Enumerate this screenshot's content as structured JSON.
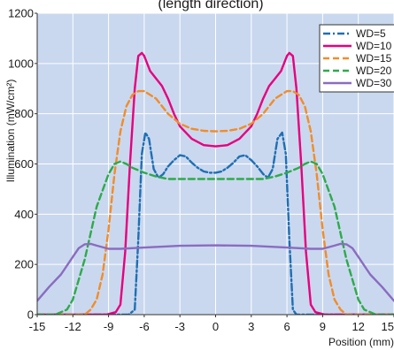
{
  "chart_data": {
    "type": "line",
    "title": "(length direction)",
    "xlabel": "Position (mm)",
    "ylabel": "Illumination (mW/cm²)",
    "xlim": [
      -15,
      15
    ],
    "ylim": [
      0,
      1200
    ],
    "x_ticks": [
      -15,
      -12,
      -9,
      -6,
      -3,
      0,
      3,
      6,
      9,
      12,
      15
    ],
    "y_ticks": [
      0,
      200,
      400,
      600,
      800,
      1000,
      1200
    ],
    "grid": true,
    "background": "#c9d8ef",
    "grid_color": "#ffffff",
    "legend_position": "top-right",
    "series": [
      {
        "name": "WD=5",
        "color": "#1f6fb2",
        "dash": "dash-dot",
        "x": [
          -15,
          -9,
          -7.3,
          -6.8,
          -6.5,
          -6.2,
          -5.9,
          -5.6,
          -5.2,
          -4.8,
          -4.4,
          -4.0,
          -3.5,
          -3.0,
          -2.5,
          -2.0,
          -1.5,
          -1.0,
          -0.5,
          0,
          0.5,
          1.0,
          1.5,
          2.0,
          2.5,
          3.0,
          3.5,
          4.0,
          4.4,
          4.8,
          5.2,
          5.6,
          5.9,
          6.2,
          6.5,
          6.8,
          7.3,
          9,
          15
        ],
        "y": [
          0,
          0,
          0,
          20,
          300,
          640,
          725,
          700,
          580,
          545,
          560,
          590,
          615,
          635,
          630,
          605,
          585,
          570,
          565,
          565,
          570,
          585,
          605,
          630,
          635,
          615,
          590,
          560,
          545,
          580,
          700,
          725,
          640,
          300,
          20,
          0,
          0,
          0,
          0
        ]
      },
      {
        "name": "WD=10",
        "color": "#e6007e",
        "dash": "solid",
        "x": [
          -15,
          -9.2,
          -8.4,
          -8.0,
          -7.6,
          -7.2,
          -6.8,
          -6.5,
          -6.2,
          -6.0,
          -5.5,
          -5.0,
          -4.5,
          -4.0,
          -3.5,
          -3.0,
          -2.0,
          -1.0,
          0,
          1.0,
          2.0,
          3.0,
          3.5,
          4.0,
          4.5,
          5.0,
          5.5,
          6.0,
          6.2,
          6.5,
          6.8,
          7.2,
          7.6,
          8.0,
          8.4,
          9.2,
          15
        ],
        "y": [
          0,
          0,
          10,
          40,
          250,
          600,
          900,
          1030,
          1042,
          1030,
          970,
          940,
          910,
          860,
          800,
          750,
          700,
          675,
          670,
          675,
          700,
          750,
          800,
          860,
          910,
          940,
          970,
          1030,
          1042,
          1030,
          900,
          600,
          250,
          40,
          10,
          0,
          0
        ]
      },
      {
        "name": "WD=15",
        "color": "#f28c28",
        "dash": "dash",
        "x": [
          -15,
          -11,
          -10.5,
          -10,
          -9.5,
          -9,
          -8.5,
          -8,
          -7.5,
          -7,
          -6.5,
          -6,
          -5,
          -4,
          -3,
          -2,
          -1,
          0,
          1,
          2,
          3,
          4,
          5,
          6,
          6.5,
          7,
          7.5,
          8,
          8.5,
          9,
          9.5,
          10,
          10.5,
          11,
          15
        ],
        "y": [
          0,
          0,
          20,
          60,
          160,
          340,
          560,
          730,
          830,
          875,
          890,
          890,
          860,
          800,
          760,
          740,
          732,
          730,
          732,
          740,
          760,
          800,
          860,
          890,
          890,
          875,
          830,
          730,
          560,
          340,
          160,
          60,
          20,
          0,
          0
        ]
      },
      {
        "name": "WD=20",
        "color": "#2eaa4a",
        "dash": "dash",
        "x": [
          -15,
          -13.5,
          -12.5,
          -12,
          -11,
          -10,
          -9,
          -8.5,
          -8,
          -7.5,
          -7,
          -6,
          -5,
          -4,
          -2,
          0,
          2,
          4,
          5,
          6,
          7,
          7.5,
          8,
          8.5,
          9,
          10,
          11,
          12,
          12.5,
          13.5,
          15
        ],
        "y": [
          0,
          0,
          20,
          60,
          220,
          430,
          560,
          600,
          610,
          600,
          585,
          565,
          550,
          540,
          540,
          540,
          540,
          540,
          550,
          565,
          585,
          600,
          610,
          600,
          560,
          430,
          220,
          60,
          20,
          0,
          0
        ]
      },
      {
        "name": "WD=30",
        "color": "#8a6cc0",
        "dash": "solid",
        "x": [
          -15,
          -14,
          -13,
          -12,
          -11.5,
          -11,
          -10.5,
          -10,
          -9,
          -8,
          -6,
          -3,
          0,
          3,
          6,
          8,
          9,
          10,
          10.5,
          11,
          11.5,
          12,
          13,
          14,
          15
        ],
        "y": [
          55,
          110,
          160,
          230,
          265,
          280,
          282,
          275,
          262,
          262,
          267,
          274,
          276,
          274,
          267,
          262,
          262,
          275,
          282,
          280,
          265,
          230,
          160,
          110,
          55
        ]
      }
    ]
  }
}
